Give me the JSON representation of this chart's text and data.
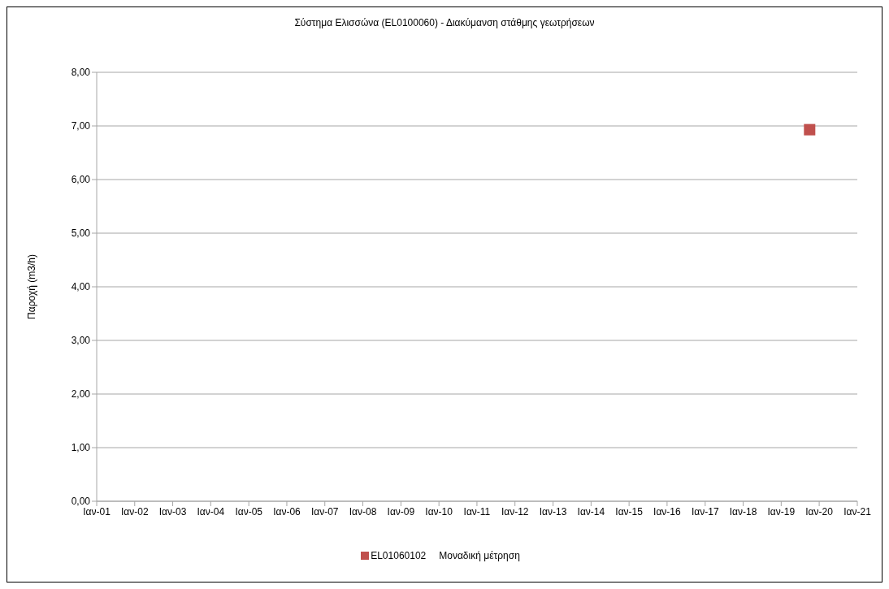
{
  "chart_data": {
    "type": "scatter",
    "title": "Σύστημα Ελισσώνα  (EL0100060) - Διακύμανση στάθμης γεωτρήσεων",
    "ylabel": "Παροχή (m3/h)",
    "series": [
      {
        "name": "EL01060102",
        "color": "#c0504d",
        "x": [
          "2019-10"
        ],
        "values": [
          6.93
        ]
      }
    ],
    "xlim": [
      "2001-01",
      "2021-01"
    ],
    "xticks": [
      {
        "value": "2001-01",
        "label": "Ιαν-01"
      },
      {
        "value": "2002-01",
        "label": "Ιαν-02"
      },
      {
        "value": "2003-01",
        "label": "Ιαν-03"
      },
      {
        "value": "2004-01",
        "label": "Ιαν-04"
      },
      {
        "value": "2005-01",
        "label": "Ιαν-05"
      },
      {
        "value": "2006-01",
        "label": "Ιαν-06"
      },
      {
        "value": "2007-01",
        "label": "Ιαν-07"
      },
      {
        "value": "2008-01",
        "label": "Ιαν-08"
      },
      {
        "value": "2009-01",
        "label": "Ιαν-09"
      },
      {
        "value": "2010-01",
        "label": "Ιαν-10"
      },
      {
        "value": "2011-01",
        "label": "Ιαν-11"
      },
      {
        "value": "2012-01",
        "label": "Ιαν-12"
      },
      {
        "value": "2013-01",
        "label": "Ιαν-13"
      },
      {
        "value": "2014-01",
        "label": "Ιαν-14"
      },
      {
        "value": "2015-01",
        "label": "Ιαν-15"
      },
      {
        "value": "2016-01",
        "label": "Ιαν-16"
      },
      {
        "value": "2017-01",
        "label": "Ιαν-17"
      },
      {
        "value": "2018-01",
        "label": "Ιαν-18"
      },
      {
        "value": "2019-01",
        "label": "Ιαν-19"
      },
      {
        "value": "2020-01",
        "label": "Ιαν-20"
      },
      {
        "value": "2021-01",
        "label": "Ιαν-21"
      }
    ],
    "ylim": [
      0,
      8
    ],
    "yticks": [
      {
        "value": 0,
        "label": "0,00"
      },
      {
        "value": 1,
        "label": "1,00"
      },
      {
        "value": 2,
        "label": "2,00"
      },
      {
        "value": 3,
        "label": "3,00"
      },
      {
        "value": 4,
        "label": "4,00"
      },
      {
        "value": 5,
        "label": "5,00"
      },
      {
        "value": 6,
        "label": "6,00"
      },
      {
        "value": 7,
        "label": "7,00"
      },
      {
        "value": 8,
        "label": "8,00"
      }
    ],
    "grid": "y",
    "marker": "square",
    "legend": "bottom",
    "annotations": [
      "Μοναδική μέτρηση"
    ]
  }
}
